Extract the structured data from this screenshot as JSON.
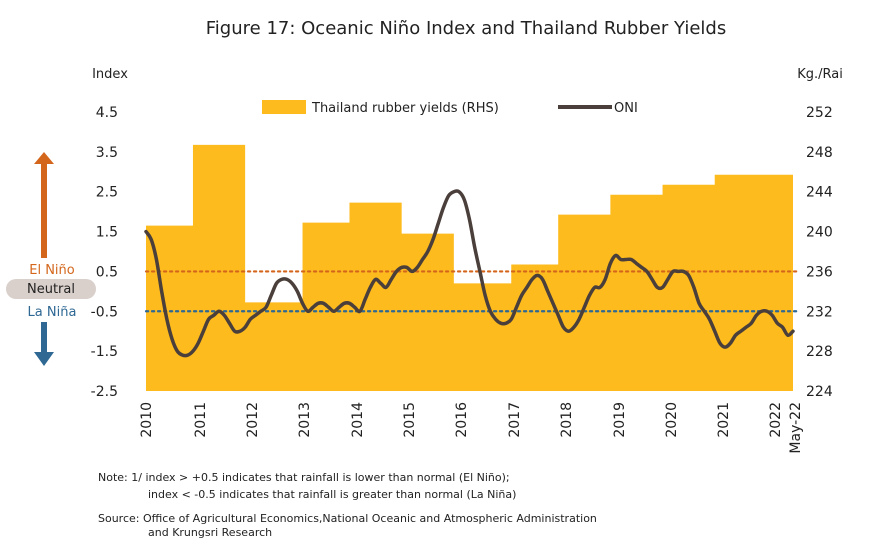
{
  "chart_data": {
    "type": "area",
    "title": "Figure 17: Oceanic Niño Index and Thailand Rubber Yields",
    "left_axis": {
      "label": "Index",
      "ticks": [
        "4.5",
        "3.5",
        "2.5",
        "1.5",
        "0.5",
        "-0.5",
        "-1.5",
        "-2.5"
      ],
      "range": [
        -2.5,
        4.5
      ]
    },
    "right_axis": {
      "label": "Kg./Rai",
      "ticks": [
        "252",
        "248",
        "244",
        "240",
        "236",
        "232",
        "228",
        "224"
      ],
      "range": [
        224,
        252
      ]
    },
    "x_ticks": [
      "2010",
      "2011",
      "2012",
      "2013",
      "2014",
      "2015",
      "2016",
      "2017",
      "2018",
      "2019",
      "2020",
      "2021",
      "2022",
      "May-22"
    ],
    "legend": [
      "Thailand rubber yields (RHS)",
      "ONI"
    ],
    "zones": {
      "el_nino": "El Niño",
      "neutral": "Neutral",
      "la_nina": "La Niña"
    },
    "thresholds": {
      "el_nino": 0.5,
      "la_nina": -0.5
    },
    "colors": {
      "yield": "#FDBB1E",
      "oni": "#4A3F3A",
      "el_nino": "#D4661C",
      "la_nina": "#2E6893",
      "neutral_bg": "#D9CFCB"
    },
    "series": [
      {
        "name": "Thailand rubber yields (RHS)",
        "axis": "right",
        "steps": [
          {
            "from": 2010.0,
            "to": 2010.9,
            "value": 240.6
          },
          {
            "from": 2010.9,
            "to": 2011.9,
            "value": 248.7
          },
          {
            "from": 2011.9,
            "to": 2013.0,
            "value": 232.9
          },
          {
            "from": 2013.0,
            "to": 2013.9,
            "value": 240.9
          },
          {
            "from": 2013.9,
            "to": 2014.9,
            "value": 242.9
          },
          {
            "from": 2014.9,
            "to": 2015.9,
            "value": 239.8
          },
          {
            "from": 2015.9,
            "to": 2017.0,
            "value": 234.8
          },
          {
            "from": 2017.0,
            "to": 2017.9,
            "value": 236.7
          },
          {
            "from": 2017.9,
            "to": 2018.9,
            "value": 241.7
          },
          {
            "from": 2018.9,
            "to": 2019.9,
            "value": 243.7
          },
          {
            "from": 2019.9,
            "to": 2020.9,
            "value": 244.7
          },
          {
            "from": 2020.9,
            "to": 2022.4,
            "value": 245.7
          }
        ]
      },
      {
        "name": "ONI",
        "axis": "left",
        "points": [
          [
            2010.0,
            1.5
          ],
          [
            2010.1,
            1.3
          ],
          [
            2010.2,
            0.8
          ],
          [
            2010.3,
            0.0
          ],
          [
            2010.4,
            -0.7
          ],
          [
            2010.5,
            -1.2
          ],
          [
            2010.6,
            -1.5
          ],
          [
            2010.7,
            -1.6
          ],
          [
            2010.8,
            -1.6
          ],
          [
            2010.9,
            -1.5
          ],
          [
            2011.0,
            -1.3
          ],
          [
            2011.1,
            -1.0
          ],
          [
            2011.2,
            -0.7
          ],
          [
            2011.3,
            -0.6
          ],
          [
            2011.4,
            -0.5
          ],
          [
            2011.5,
            -0.6
          ],
          [
            2011.6,
            -0.8
          ],
          [
            2011.7,
            -1.0
          ],
          [
            2011.8,
            -1.0
          ],
          [
            2011.9,
            -0.9
          ],
          [
            2012.0,
            -0.7
          ],
          [
            2012.1,
            -0.6
          ],
          [
            2012.2,
            -0.5
          ],
          [
            2012.3,
            -0.4
          ],
          [
            2012.4,
            -0.1
          ],
          [
            2012.5,
            0.2
          ],
          [
            2012.6,
            0.3
          ],
          [
            2012.7,
            0.3
          ],
          [
            2012.8,
            0.2
          ],
          [
            2012.9,
            0.0
          ],
          [
            2013.0,
            -0.3
          ],
          [
            2013.1,
            -0.5
          ],
          [
            2013.2,
            -0.4
          ],
          [
            2013.3,
            -0.3
          ],
          [
            2013.4,
            -0.3
          ],
          [
            2013.5,
            -0.4
          ],
          [
            2013.6,
            -0.5
          ],
          [
            2013.7,
            -0.4
          ],
          [
            2013.8,
            -0.3
          ],
          [
            2013.9,
            -0.3
          ],
          [
            2014.0,
            -0.4
          ],
          [
            2014.1,
            -0.5
          ],
          [
            2014.2,
            -0.2
          ],
          [
            2014.3,
            0.1
          ],
          [
            2014.4,
            0.3
          ],
          [
            2014.5,
            0.2
          ],
          [
            2014.6,
            0.1
          ],
          [
            2014.7,
            0.3
          ],
          [
            2014.8,
            0.5
          ],
          [
            2014.9,
            0.6
          ],
          [
            2015.0,
            0.6
          ],
          [
            2015.1,
            0.5
          ],
          [
            2015.2,
            0.6
          ],
          [
            2015.3,
            0.8
          ],
          [
            2015.4,
            1.0
          ],
          [
            2015.5,
            1.3
          ],
          [
            2015.6,
            1.7
          ],
          [
            2015.7,
            2.1
          ],
          [
            2015.8,
            2.4
          ],
          [
            2015.9,
            2.5
          ],
          [
            2016.0,
            2.5
          ],
          [
            2016.1,
            2.3
          ],
          [
            2016.2,
            1.8
          ],
          [
            2016.3,
            1.1
          ],
          [
            2016.4,
            0.5
          ],
          [
            2016.5,
            -0.1
          ],
          [
            2016.6,
            -0.5
          ],
          [
            2016.7,
            -0.7
          ],
          [
            2016.8,
            -0.8
          ],
          [
            2016.9,
            -0.8
          ],
          [
            2017.0,
            -0.7
          ],
          [
            2017.1,
            -0.4
          ],
          [
            2017.2,
            -0.1
          ],
          [
            2017.3,
            0.1
          ],
          [
            2017.4,
            0.3
          ],
          [
            2017.5,
            0.4
          ],
          [
            2017.6,
            0.3
          ],
          [
            2017.7,
            0.0
          ],
          [
            2017.8,
            -0.3
          ],
          [
            2017.9,
            -0.6
          ],
          [
            2018.0,
            -0.9
          ],
          [
            2018.1,
            -1.0
          ],
          [
            2018.2,
            -0.9
          ],
          [
            2018.3,
            -0.7
          ],
          [
            2018.4,
            -0.4
          ],
          [
            2018.5,
            -0.1
          ],
          [
            2018.6,
            0.1
          ],
          [
            2018.7,
            0.1
          ],
          [
            2018.8,
            0.3
          ],
          [
            2018.9,
            0.7
          ],
          [
            2019.0,
            0.9
          ],
          [
            2019.1,
            0.8
          ],
          [
            2019.2,
            0.8
          ],
          [
            2019.3,
            0.8
          ],
          [
            2019.4,
            0.7
          ],
          [
            2019.5,
            0.6
          ],
          [
            2019.6,
            0.5
          ],
          [
            2019.7,
            0.3
          ],
          [
            2019.8,
            0.1
          ],
          [
            2019.9,
            0.1
          ],
          [
            2020.0,
            0.3
          ],
          [
            2020.1,
            0.5
          ],
          [
            2020.2,
            0.5
          ],
          [
            2020.3,
            0.5
          ],
          [
            2020.4,
            0.4
          ],
          [
            2020.5,
            0.1
          ],
          [
            2020.6,
            -0.3
          ],
          [
            2020.7,
            -0.5
          ],
          [
            2020.8,
            -0.7
          ],
          [
            2020.9,
            -1.0
          ],
          [
            2021.0,
            -1.3
          ],
          [
            2021.1,
            -1.4
          ],
          [
            2021.2,
            -1.3
          ],
          [
            2021.3,
            -1.1
          ],
          [
            2021.4,
            -1.0
          ],
          [
            2021.5,
            -0.9
          ],
          [
            2021.6,
            -0.8
          ],
          [
            2021.7,
            -0.6
          ],
          [
            2021.8,
            -0.5
          ],
          [
            2021.9,
            -0.5
          ],
          [
            2022.0,
            -0.6
          ],
          [
            2022.1,
            -0.8
          ],
          [
            2022.2,
            -0.9
          ],
          [
            2022.3,
            -1.1
          ],
          [
            2022.4,
            -1.0
          ]
        ]
      }
    ],
    "notes": [
      "Note: 1/ index > +0.5 indicates that rainfall is lower than normal (El Niño);",
      "index < -0.5 indicates that rainfall is greater than normal (La Niña)",
      "Source: Office of Agricultural Economics,National Oceanic and Atmospheric Administration",
      "and Krungsri Research"
    ]
  }
}
